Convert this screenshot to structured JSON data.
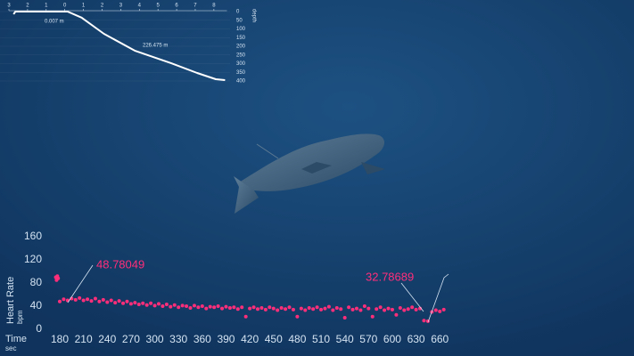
{
  "chart_data": [
    {
      "type": "line",
      "x": [
        -2.75,
        -2.65,
        0,
        0.15,
        0.9,
        2.1,
        3.75,
        5.7,
        7.1,
        8.1,
        8.6
      ],
      "values": [
        15,
        0,
        0,
        0,
        35,
        128,
        225,
        297,
        354,
        390,
        395
      ],
      "color": "#ffffff",
      "xlim": [
        -3,
        8.7
      ],
      "xticks": [
        {
          "value": -3,
          "label": "3"
        },
        {
          "value": -2,
          "label": "2"
        },
        {
          "value": -1,
          "label": "1"
        },
        0,
        1,
        2,
        3,
        4,
        5,
        6,
        7,
        8
      ],
      "ylim": [
        0,
        400
      ],
      "yticks": [
        0,
        50,
        100,
        150,
        200,
        250,
        300,
        350,
        400
      ],
      "y_reversed": true,
      "grid": true,
      "ylabel": "depth",
      "annotations": [
        "0.007 m",
        "226.475 m"
      ]
    },
    {
      "type": "scatter",
      "x": [
        175,
        176,
        177,
        178,
        180,
        185,
        190,
        195,
        200,
        205,
        210,
        215,
        220,
        225,
        230,
        235,
        240,
        245,
        250,
        255,
        260,
        265,
        270,
        275,
        280,
        285,
        290,
        295,
        300,
        305,
        310,
        315,
        320,
        325,
        330,
        335,
        340,
        345,
        350,
        355,
        360,
        365,
        370,
        375,
        380,
        385,
        390,
        395,
        400,
        405,
        410,
        415,
        420,
        425,
        430,
        435,
        440,
        445,
        450,
        455,
        460,
        465,
        470,
        475,
        480,
        485,
        490,
        495,
        500,
        505,
        510,
        515,
        520,
        525,
        530,
        535,
        540,
        545,
        550,
        555,
        560,
        565,
        570,
        575,
        580,
        585,
        590,
        595,
        600,
        605,
        610,
        615,
        620,
        625,
        630,
        635,
        640,
        645,
        650,
        655,
        660,
        665
      ],
      "values": [
        90,
        85,
        92,
        88,
        48,
        52,
        50,
        53,
        51,
        54,
        50,
        52,
        49,
        53,
        48,
        51,
        47,
        50,
        46,
        49,
        45,
        48,
        44,
        46,
        43,
        45,
        42,
        45,
        41,
        44,
        40,
        43,
        39,
        42,
        38,
        41,
        40,
        37,
        41,
        38,
        40,
        36,
        39,
        38,
        40,
        36,
        39,
        37,
        38,
        35,
        38,
        22,
        36,
        38,
        35,
        37,
        34,
        38,
        36,
        33,
        37,
        35,
        38,
        34,
        22,
        36,
        33,
        37,
        35,
        38,
        34,
        36,
        39,
        33,
        37,
        35,
        20,
        38,
        34,
        36,
        33,
        40,
        36,
        22,
        35,
        38,
        33,
        36,
        34,
        25,
        37,
        33,
        35,
        38,
        34,
        36,
        15,
        14,
        30,
        33,
        31,
        34
      ],
      "color": "#ff2e7a",
      "xlim": [
        166.5,
        671
      ],
      "xticks": [
        180,
        210,
        240,
        270,
        300,
        330,
        360,
        390,
        420,
        450,
        480,
        510,
        540,
        570,
        600,
        630,
        660
      ],
      "ylim": [
        0,
        160
      ],
      "yticks": [
        0,
        40,
        80,
        120,
        160
      ],
      "ylabel": "Heart Rate",
      "ylabel_unit": "bpm",
      "xlabel": "Time",
      "xlabel_unit": "sec",
      "annotations": [
        "48.78049",
        "32.78689"
      ]
    }
  ]
}
